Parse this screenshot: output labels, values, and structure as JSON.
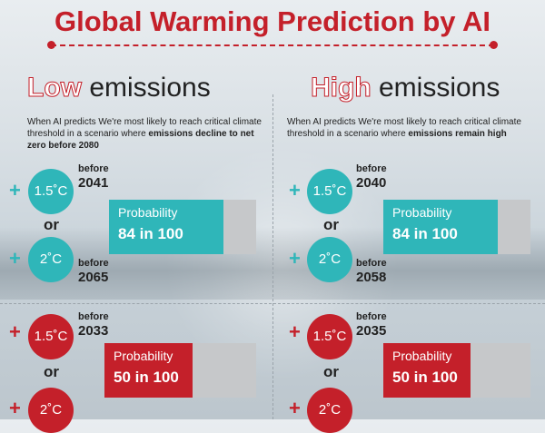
{
  "title": "Global Warming Prediction by AI",
  "low": {
    "heading_highlight": "Low",
    "heading_rest": " emissions",
    "desc_pre": "When AI predicts We're most likely to reach critical climate threshold in a scenario where ",
    "desc_bold": "emissions decline to net zero before 2080",
    "teal": {
      "a": {
        "temp": "1.5˚C",
        "before": "before",
        "year": "2041"
      },
      "or": "or",
      "b": {
        "temp": "2˚C",
        "before": "before",
        "year": "2065"
      },
      "prob_label": "Probability",
      "prob_value": "84 in 100"
    },
    "red": {
      "a": {
        "temp": "1.5˚C",
        "before": "before",
        "year": "2033"
      },
      "or": "or",
      "b": {
        "temp": "2˚C"
      },
      "prob_label": "Probability",
      "prob_value": "50 in 100"
    }
  },
  "high": {
    "heading_highlight": "High",
    "heading_rest": " emissions",
    "desc_pre": "When AI predicts We're most likely to reach critical climate threshold in a scenario where ",
    "desc_bold": "emissions remain high",
    "teal": {
      "a": {
        "temp": "1.5˚C",
        "before": "before",
        "year": "2040"
      },
      "or": "or",
      "b": {
        "temp": "2˚C",
        "before": "before",
        "year": "2058"
      },
      "prob_label": "Probability",
      "prob_value": "84 in 100"
    },
    "red": {
      "a": {
        "temp": "1.5˚C",
        "before": "before",
        "year": "2035"
      },
      "or": "or",
      "b": {
        "temp": "2˚C"
      },
      "prob_label": "Probability",
      "prob_value": "50 in 100"
    }
  },
  "plus_symbol": "+",
  "colors": {
    "red": "#c4202a",
    "teal": "#2fb6b9",
    "gray": "#c6c8ca"
  }
}
